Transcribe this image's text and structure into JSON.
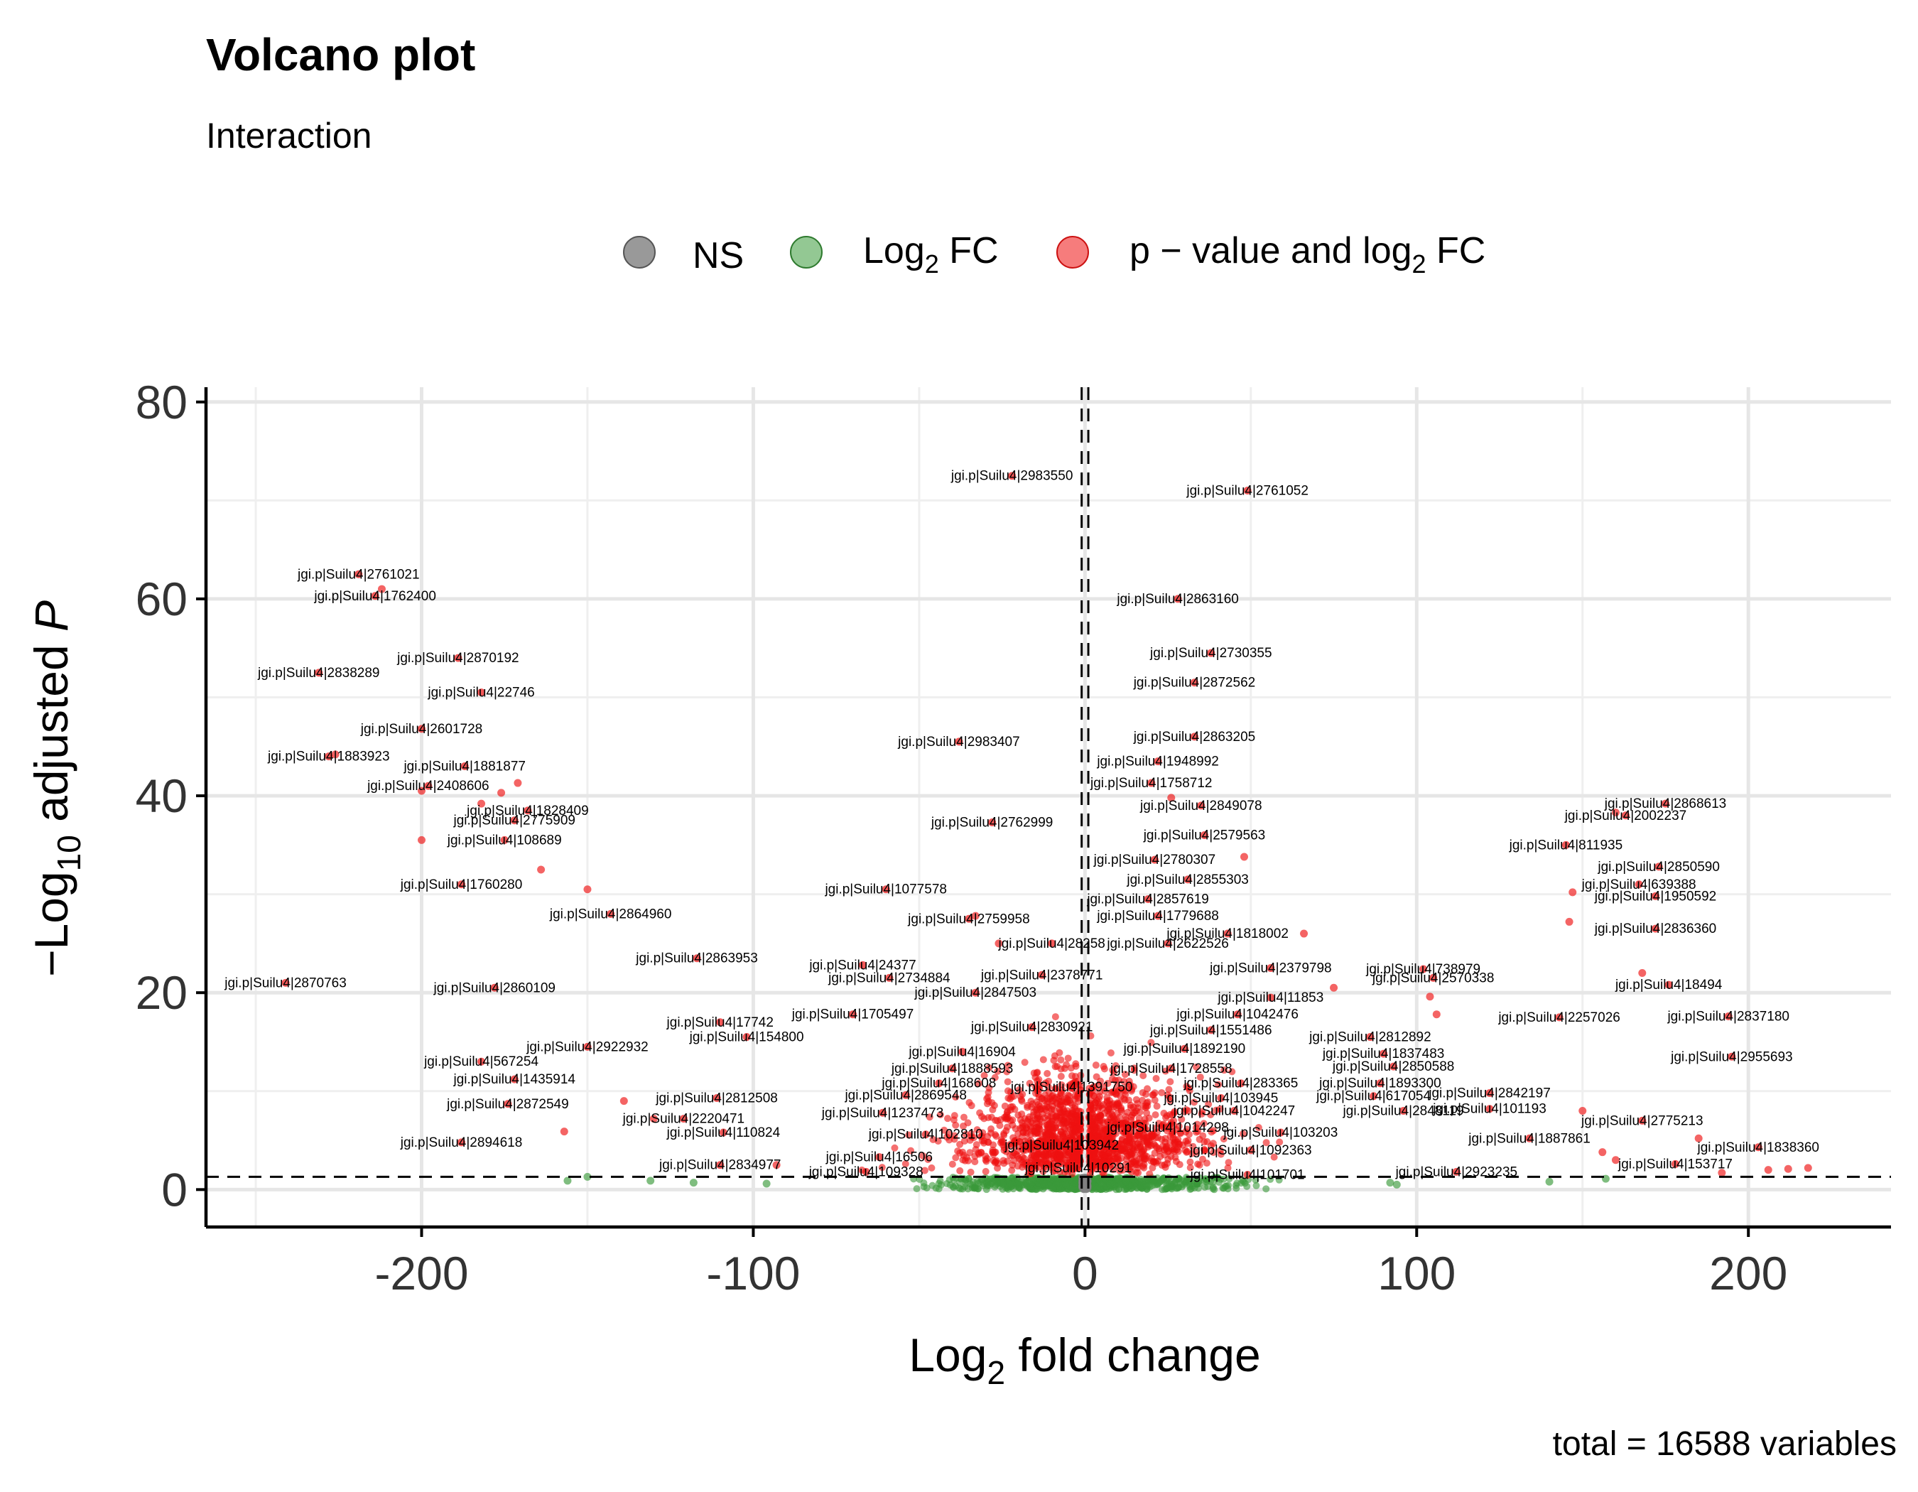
{
  "header": {
    "title": "Volcano plot",
    "subtitle": "Interaction"
  },
  "caption": "total = 16588 variables",
  "colors": {
    "ns": "#808080",
    "log2fc": "#3a9a3a",
    "sig": "#ee1111"
  },
  "chart_data": {
    "type": "scatter",
    "title": "Volcano plot",
    "subtitle": "Interaction",
    "xlabel_main": "Log",
    "xlabel_sub": "2",
    "xlabel_tail": " fold change",
    "ylabel_pre": "−Log",
    "ylabel_sub": "10",
    "ylabel_mid": " adjusted ",
    "ylabel_italic": "P",
    "xlim": [
      -265,
      243
    ],
    "ylim": [
      -3.8,
      81.5
    ],
    "x_ticks": [
      -200,
      -100,
      0,
      100,
      200
    ],
    "y_ticks": [
      0,
      20,
      40,
      60,
      80
    ],
    "grid": true,
    "cutoffs": {
      "x": [
        -1,
        1
      ],
      "y": 1.3
    },
    "legend": {
      "position": "top",
      "entries": [
        {
          "label": "NS",
          "color": "#808080"
        },
        {
          "label_main": "Log",
          "label_sub": "2",
          "label_tail": " FC",
          "color": "#3a9a3a"
        },
        {
          "label_main": "p − value and log",
          "label_sub": "2",
          "label_tail": " FC",
          "color": "#ee1111"
        }
      ]
    },
    "labeled_points": [
      {
        "x": -22,
        "y": 72.5,
        "label": "jgi.p|Suilu4|2983550"
      },
      {
        "x": 49,
        "y": 71,
        "label": "jgi.p|Suilu4|2761052"
      },
      {
        "x": -219,
        "y": 62.5,
        "label": "jgi.p|Suilu4|2761021"
      },
      {
        "x": -214,
        "y": 60.3,
        "label": "jgi.p|Suilu4|1762400"
      },
      {
        "x": 28,
        "y": 60,
        "label": "jgi.p|Suilu4|2863160"
      },
      {
        "x": -189,
        "y": 54,
        "label": "jgi.p|Suilu4|2870192"
      },
      {
        "x": 38,
        "y": 54.5,
        "label": "jgi.p|Suilu4|2730355"
      },
      {
        "x": -231,
        "y": 52.5,
        "label": "jgi.p|Suilu4|2838289"
      },
      {
        "x": 33,
        "y": 51.5,
        "label": "jgi.p|Suilu4|2872562"
      },
      {
        "x": -182,
        "y": 50.5,
        "label": "jgi.p|Suilu4|22746"
      },
      {
        "x": -200,
        "y": 46.8,
        "label": "jgi.p|Suilu4|2601728"
      },
      {
        "x": -38,
        "y": 45.5,
        "label": "jgi.p|Suilu4|2983407"
      },
      {
        "x": 33,
        "y": 46,
        "label": "jgi.p|Suilu4|2863205"
      },
      {
        "x": -228,
        "y": 44,
        "label": "jgi.p|Suilu4|1883923"
      },
      {
        "x": -187,
        "y": 43,
        "label": "jgi.p|Suilu4|1881877"
      },
      {
        "x": 22,
        "y": 43.5,
        "label": "jgi.p|Suilu4|1948992"
      },
      {
        "x": -198,
        "y": 41,
        "label": "jgi.p|Suilu4|2408606"
      },
      {
        "x": 20,
        "y": 41.3,
        "label": "jgi.p|Suilu4|1758712"
      },
      {
        "x": -168,
        "y": 38.5,
        "label": "jgi.p|Suilu4|1828409"
      },
      {
        "x": 35,
        "y": 39,
        "label": "jgi.p|Suilu4|2849078"
      },
      {
        "x": -172,
        "y": 37.5,
        "label": "jgi.p|Suilu4|2775909"
      },
      {
        "x": -28,
        "y": 37.3,
        "label": "jgi.p|Suilu4|2762999"
      },
      {
        "x": 36,
        "y": 36,
        "label": "jgi.p|Suilu4|2579563"
      },
      {
        "x": -175,
        "y": 35.5,
        "label": "jgi.p|Suilu4|108689"
      },
      {
        "x": 145,
        "y": 35,
        "label": "jgi.p|Suilu4|811935"
      },
      {
        "x": 175,
        "y": 39.2,
        "label": "jgi.p|Suilu4|2868613"
      },
      {
        "x": 163,
        "y": 38,
        "label": "jgi.p|Suilu4|2002237"
      },
      {
        "x": 21,
        "y": 33.5,
        "label": "jgi.p|Suilu4|2780307"
      },
      {
        "x": 173,
        "y": 32.8,
        "label": "jgi.p|Suilu4|2850590"
      },
      {
        "x": -188,
        "y": 31,
        "label": "jgi.p|Suilu4|1760280"
      },
      {
        "x": 31,
        "y": 31.5,
        "label": "jgi.p|Suilu4|2855303"
      },
      {
        "x": 167,
        "y": 31,
        "label": "jgi.p|Suilu4|639388"
      },
      {
        "x": -60,
        "y": 30.5,
        "label": "jgi.p|Suilu4|1077578"
      },
      {
        "x": 172,
        "y": 29.8,
        "label": "jgi.p|Suilu4|1950592"
      },
      {
        "x": 19,
        "y": 29.5,
        "label": "jgi.p|Suilu4|2857619"
      },
      {
        "x": -143,
        "y": 28,
        "label": "jgi.p|Suilu4|2864960"
      },
      {
        "x": 22,
        "y": 27.8,
        "label": "jgi.p|Suilu4|1779688"
      },
      {
        "x": -35,
        "y": 27.5,
        "label": "jgi.p|Suilu4|2759958"
      },
      {
        "x": 172,
        "y": 26.5,
        "label": "jgi.p|Suilu4|2836360"
      },
      {
        "x": 43,
        "y": 26,
        "label": "jgi.p|Suilu4|1818002"
      },
      {
        "x": -10,
        "y": 25,
        "label": "jgi.p|Suilu4|28258"
      },
      {
        "x": 25,
        "y": 25,
        "label": "jgi.p|Suilu4|2622526"
      },
      {
        "x": -117,
        "y": 23.5,
        "label": "jgi.p|Suilu4|2863953"
      },
      {
        "x": -67,
        "y": 22.8,
        "label": "jgi.p|Suilu4|24377"
      },
      {
        "x": 56,
        "y": 22.5,
        "label": "jgi.p|Suilu4|2379798"
      },
      {
        "x": 102,
        "y": 22.4,
        "label": "jgi.p|Suilu4|738979"
      },
      {
        "x": -13,
        "y": 21.8,
        "label": "jgi.p|Suilu4|2378771"
      },
      {
        "x": -59,
        "y": 21.5,
        "label": "jgi.p|Suilu4|2734884"
      },
      {
        "x": 105,
        "y": 21.5,
        "label": "jgi.p|Suilu4|2570338"
      },
      {
        "x": -241,
        "y": 21,
        "label": "jgi.p|Suilu4|2870763"
      },
      {
        "x": -178,
        "y": 20.5,
        "label": "jgi.p|Suilu4|2860109"
      },
      {
        "x": 176,
        "y": 20.8,
        "label": "jgi.p|Suilu4|18494"
      },
      {
        "x": -33,
        "y": 20,
        "label": "jgi.p|Suilu4|2847503"
      },
      {
        "x": 56,
        "y": 19.5,
        "label": "jgi.p|Suilu4|11853"
      },
      {
        "x": -70,
        "y": 17.8,
        "label": "jgi.p|Suilu4|1705497"
      },
      {
        "x": 46,
        "y": 17.8,
        "label": "jgi.p|Suilu4|1042476"
      },
      {
        "x": -110,
        "y": 17,
        "label": "jgi.p|Suilu4|17742"
      },
      {
        "x": 143,
        "y": 17.5,
        "label": "jgi.p|Suilu4|2257026"
      },
      {
        "x": 194,
        "y": 17.6,
        "label": "jgi.p|Suilu4|2837180"
      },
      {
        "x": -16,
        "y": 16.5,
        "label": "jgi.p|Suilu4|2830921"
      },
      {
        "x": 38,
        "y": 16.2,
        "label": "jgi.p|Suilu4|1551486"
      },
      {
        "x": -102,
        "y": 15.5,
        "label": "jgi.p|Suilu4|154800"
      },
      {
        "x": 86,
        "y": 15.5,
        "label": "jgi.p|Suilu4|2812892"
      },
      {
        "x": -150,
        "y": 14.5,
        "label": "jgi.p|Suilu4|2922932"
      },
      {
        "x": 30,
        "y": 14.3,
        "label": "jgi.p|Suilu4|1892190"
      },
      {
        "x": -37,
        "y": 14,
        "label": "jgi.p|Suilu4|16904"
      },
      {
        "x": 90,
        "y": 13.8,
        "label": "jgi.p|Suilu4|1837483"
      },
      {
        "x": -182,
        "y": 13,
        "label": "jgi.p|Suilu4|567254"
      },
      {
        "x": 195,
        "y": 13.5,
        "label": "jgi.p|Suilu4|2955693"
      },
      {
        "x": -40,
        "y": 12.3,
        "label": "jgi.p|Suilu4|1888593"
      },
      {
        "x": 26,
        "y": 12.3,
        "label": "jgi.p|Suilu4|1728558"
      },
      {
        "x": 93,
        "y": 12.5,
        "label": "jgi.p|Suilu4|2850588"
      },
      {
        "x": -172,
        "y": 11.2,
        "label": "jgi.p|Suilu4|1435914"
      },
      {
        "x": -44,
        "y": 10.8,
        "label": "jgi.p|Suilu4|168608"
      },
      {
        "x": 47,
        "y": 10.8,
        "label": "jgi.p|Suilu4|283365"
      },
      {
        "x": 89,
        "y": 10.8,
        "label": "jgi.p|Suilu4|1893300"
      },
      {
        "x": -4,
        "y": 10.4,
        "label": "jgi.p|Suilu4|1391750"
      },
      {
        "x": -54,
        "y": 9.6,
        "label": "jgi.p|Suilu4|2869548"
      },
      {
        "x": 41,
        "y": 9.3,
        "label": "jgi.p|Suilu4|103945"
      },
      {
        "x": 87,
        "y": 9.5,
        "label": "jgi.p|Suilu4|617054"
      },
      {
        "x": 122,
        "y": 9.8,
        "label": "jgi.p|Suilu4|2842197"
      },
      {
        "x": -111,
        "y": 9.3,
        "label": "jgi.p|Suilu4|2812508"
      },
      {
        "x": -174,
        "y": 8.7,
        "label": "jgi.p|Suilu4|2872549"
      },
      {
        "x": -61,
        "y": 7.8,
        "label": "jgi.p|Suilu4|1237473"
      },
      {
        "x": 45,
        "y": 8,
        "label": "jgi.p|Suilu4|1042247"
      },
      {
        "x": 96,
        "y": 8,
        "label": "jgi.p|Suilu4|2848119"
      },
      {
        "x": 122,
        "y": 8.2,
        "label": "jgi.p|Suilu4|101193"
      },
      {
        "x": -121,
        "y": 7.2,
        "label": "jgi.p|Suilu4|2220471"
      },
      {
        "x": 168,
        "y": 7,
        "label": "jgi.p|Suilu4|2775213"
      },
      {
        "x": -109,
        "y": 5.8,
        "label": "jgi.p|Suilu4|110824"
      },
      {
        "x": -48,
        "y": 5.6,
        "label": "jgi.p|Suilu4|102810"
      },
      {
        "x": 25,
        "y": 6.3,
        "label": "jgi.p|Suilu4|1014298"
      },
      {
        "x": 59,
        "y": 5.8,
        "label": "jgi.p|Suilu4|103203"
      },
      {
        "x": -188,
        "y": 4.8,
        "label": "jgi.p|Suilu4|2894618"
      },
      {
        "x": 134,
        "y": 5.2,
        "label": "jgi.p|Suilu4|1887861"
      },
      {
        "x": -7,
        "y": 4.5,
        "label": "jgi.p|Suilu4|103942"
      },
      {
        "x": 203,
        "y": 4.3,
        "label": "jgi.p|Suilu4|1838360"
      },
      {
        "x": 50,
        "y": 4,
        "label": "jgi.p|Suilu4|1092363"
      },
      {
        "x": -62,
        "y": 3.3,
        "label": "jgi.p|Suilu4|16506"
      },
      {
        "x": -110,
        "y": 2.5,
        "label": "jgi.p|Suilu4|2834977"
      },
      {
        "x": 178,
        "y": 2.6,
        "label": "jgi.p|Suilu4|153717"
      },
      {
        "x": -66,
        "y": 1.8,
        "label": "jgi.p|Suilu4|109328"
      },
      {
        "x": -2,
        "y": 2.2,
        "label": "jgi.p|Suilu4|10291"
      },
      {
        "x": 112,
        "y": 1.8,
        "label": "jgi.p|Suilu4|2923235"
      },
      {
        "x": 49,
        "y": 1.5,
        "label": "jgi.p|Suilu4|101701"
      }
    ],
    "extra_points": [
      {
        "x": -212,
        "y": 61,
        "g": "sig"
      },
      {
        "x": -226,
        "y": 44.2,
        "g": "sig"
      },
      {
        "x": -200,
        "y": 40.5,
        "g": "sig"
      },
      {
        "x": -176,
        "y": 40.3,
        "g": "sig"
      },
      {
        "x": -171,
        "y": 41.3,
        "g": "sig"
      },
      {
        "x": -182,
        "y": 39.2,
        "g": "sig"
      },
      {
        "x": -200,
        "y": 35.5,
        "g": "sig"
      },
      {
        "x": -164,
        "y": 32.5,
        "g": "sig"
      },
      {
        "x": -150,
        "y": 30.5,
        "g": "sig"
      },
      {
        "x": -33,
        "y": 27.8,
        "g": "sig"
      },
      {
        "x": -26,
        "y": 25,
        "g": "sig"
      },
      {
        "x": 66,
        "y": 26,
        "g": "sig"
      },
      {
        "x": 48,
        "y": 33.8,
        "g": "sig"
      },
      {
        "x": 146,
        "y": 27.2,
        "g": "sig"
      },
      {
        "x": 147,
        "y": 30.2,
        "g": "sig"
      },
      {
        "x": 160,
        "y": 38.3,
        "g": "sig"
      },
      {
        "x": 168,
        "y": 22,
        "g": "sig"
      },
      {
        "x": 104,
        "y": 19.6,
        "g": "sig"
      },
      {
        "x": 106,
        "y": 17.8,
        "g": "sig"
      },
      {
        "x": 75,
        "y": 20.5,
        "g": "sig"
      },
      {
        "x": 26,
        "y": 39.8,
        "g": "sig"
      },
      {
        "x": -139,
        "y": 9,
        "g": "sig"
      },
      {
        "x": -157,
        "y": 5.9,
        "g": "sig"
      },
      {
        "x": -130,
        "y": 7.2,
        "g": "sig"
      },
      {
        "x": 150,
        "y": 8,
        "g": "sig"
      },
      {
        "x": 156,
        "y": 3.8,
        "g": "sig"
      },
      {
        "x": 160,
        "y": 3,
        "g": "sig"
      },
      {
        "x": 185,
        "y": 5.2,
        "g": "sig"
      },
      {
        "x": 206,
        "y": 2,
        "g": "sig"
      },
      {
        "x": 212,
        "y": 2.1,
        "g": "sig"
      },
      {
        "x": 218,
        "y": 2.2,
        "g": "sig"
      },
      {
        "x": 192,
        "y": 1.7,
        "g": "sig"
      },
      {
        "x": -93,
        "y": 2.5,
        "g": "sig"
      },
      {
        "x": -150,
        "y": 1.3,
        "g": "log2fc"
      },
      {
        "x": -131,
        "y": 0.9,
        "g": "log2fc"
      },
      {
        "x": -118,
        "y": 0.7,
        "g": "log2fc"
      },
      {
        "x": -96,
        "y": 0.6,
        "g": "log2fc"
      },
      {
        "x": 92,
        "y": 0.7,
        "g": "log2fc"
      },
      {
        "x": 94,
        "y": 0.5,
        "g": "log2fc"
      },
      {
        "x": 140,
        "y": 0.8,
        "g": "log2fc"
      },
      {
        "x": 157,
        "y": 1.1,
        "g": "log2fc"
      },
      {
        "x": -156,
        "y": 0.9,
        "g": "log2fc"
      }
    ]
  }
}
